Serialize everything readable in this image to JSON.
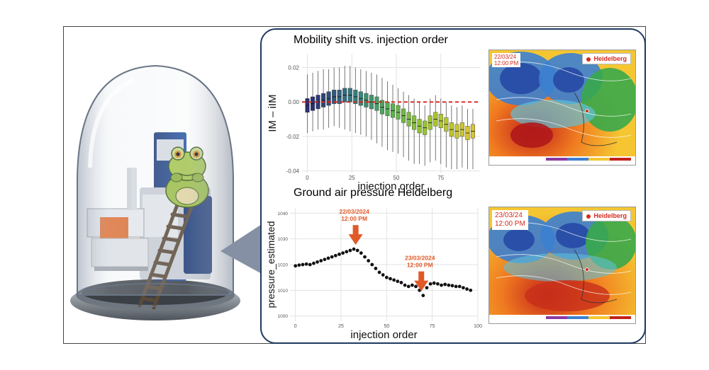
{
  "chart_data": [
    {
      "type": "box",
      "title": "Mobility shift vs. injection order",
      "xlabel": "injection order",
      "ylabel": "IM – iIM",
      "x_ticks": [
        "0",
        "25",
        "50",
        "75"
      ],
      "y_ticks": [
        "0.02",
        "0.00",
        "-0.02",
        "-0.04"
      ],
      "xlim": [
        -3,
        97
      ],
      "ylim": [
        -0.041,
        0.028
      ],
      "reference_line": {
        "y": 0.0,
        "style": "dashed",
        "color": "#e0201a"
      },
      "grid": true,
      "x": [
        0,
        3,
        6,
        9,
        12,
        15,
        18,
        21,
        24,
        27,
        30,
        33,
        36,
        39,
        42,
        45,
        48,
        51,
        54,
        57,
        60,
        63,
        66,
        69,
        72,
        75,
        78,
        81,
        84,
        87,
        90,
        93
      ],
      "median": [
        -0.002,
        -0.001,
        0.0,
        0.001,
        0.002,
        0.003,
        0.003,
        0.004,
        0.004,
        0.003,
        0.002,
        0.001,
        0.0,
        -0.001,
        -0.003,
        -0.004,
        -0.005,
        -0.006,
        -0.008,
        -0.01,
        -0.012,
        -0.014,
        -0.015,
        -0.012,
        -0.01,
        -0.011,
        -0.013,
        -0.016,
        -0.017,
        -0.016,
        -0.018,
        -0.017
      ],
      "q1": [
        -0.006,
        -0.005,
        -0.004,
        -0.003,
        -0.002,
        -0.001,
        -0.001,
        0.0,
        0.0,
        -0.001,
        -0.002,
        -0.003,
        -0.004,
        -0.005,
        -0.007,
        -0.008,
        -0.009,
        -0.01,
        -0.012,
        -0.014,
        -0.016,
        -0.018,
        -0.019,
        -0.016,
        -0.014,
        -0.015,
        -0.017,
        -0.02,
        -0.021,
        -0.02,
        -0.022,
        -0.021
      ],
      "q3": [
        0.002,
        0.003,
        0.004,
        0.005,
        0.006,
        0.007,
        0.007,
        0.008,
        0.008,
        0.007,
        0.006,
        0.005,
        0.004,
        0.003,
        0.001,
        0.0,
        -0.001,
        -0.002,
        -0.004,
        -0.006,
        -0.008,
        -0.01,
        -0.011,
        -0.008,
        -0.006,
        -0.007,
        -0.009,
        -0.012,
        -0.013,
        -0.012,
        -0.014,
        -0.013
      ],
      "whisker_low": [
        -0.018,
        -0.017,
        -0.016,
        -0.016,
        -0.015,
        -0.014,
        -0.015,
        -0.016,
        -0.017,
        -0.018,
        -0.019,
        -0.02,
        -0.022,
        -0.024,
        -0.026,
        -0.028,
        -0.029,
        -0.03,
        -0.032,
        -0.034,
        -0.036,
        -0.036,
        -0.037,
        -0.035,
        -0.034,
        -0.036,
        -0.038,
        -0.039,
        -0.039,
        -0.038,
        -0.039,
        -0.039
      ],
      "whisker_high": [
        0.016,
        0.017,
        0.018,
        0.019,
        0.019,
        0.02,
        0.02,
        0.021,
        0.021,
        0.02,
        0.019,
        0.018,
        0.017,
        0.016,
        0.014,
        0.012,
        0.01,
        0.008,
        0.006,
        0.004,
        0.002,
        0.0,
        -0.002,
        0.002,
        0.004,
        0.002,
        0.0,
        -0.002,
        -0.003,
        -0.002,
        -0.004,
        -0.004
      ],
      "box_colors": [
        "#2b2f6e",
        "#2b2f6e",
        "#2d3a75",
        "#2e4478",
        "#2f4e7b",
        "#30587e",
        "#316280",
        "#326b80",
        "#33757f",
        "#357e7c",
        "#388678",
        "#3c8e72",
        "#41966c",
        "#479d65",
        "#4ea45e",
        "#56aa56",
        "#5fb04f",
        "#68b548",
        "#72b942",
        "#7cbd3c",
        "#86c037",
        "#8fc233",
        "#98c430",
        "#a0c52e",
        "#a8c62d",
        "#b0c72c",
        "#b8c72c",
        "#bfc72d",
        "#c6c62f",
        "#ccc531",
        "#d2c434",
        "#d7c237"
      ]
    },
    {
      "type": "scatter",
      "title": "Ground air pressure Heidelberg",
      "xlabel": "injection order",
      "ylabel": "pressure_estimated",
      "x_ticks": [
        "0",
        "25",
        "50",
        "75",
        "100"
      ],
      "y_ticks": [
        "1040",
        "1030",
        "1020",
        "1010",
        "1000"
      ],
      "xlim": [
        -3,
        100
      ],
      "ylim": [
        998,
        1042
      ],
      "grid": true,
      "x": [
        0,
        2,
        4,
        6,
        8,
        10,
        12,
        14,
        16,
        18,
        20,
        22,
        24,
        26,
        28,
        30,
        32,
        34,
        36,
        38,
        40,
        42,
        44,
        46,
        48,
        50,
        52,
        54,
        56,
        58,
        60,
        62,
        64,
        66,
        68,
        70,
        72,
        74,
        76,
        78,
        80,
        82,
        84,
        86,
        88,
        90,
        92,
        94,
        96
      ],
      "y": [
        1019.5,
        1019.8,
        1020.0,
        1020.2,
        1020.0,
        1020.5,
        1021.0,
        1021.5,
        1022.0,
        1022.5,
        1023.0,
        1023.5,
        1024.0,
        1024.5,
        1025.0,
        1025.5,
        1026.0,
        1025.5,
        1024.5,
        1023.0,
        1021.5,
        1020.0,
        1018.5,
        1017.0,
        1016.0,
        1015.0,
        1014.5,
        1014.0,
        1013.5,
        1013.0,
        1012.0,
        1011.5,
        1012.0,
        1011.5,
        1010.0,
        1008.0,
        1011.0,
        1012.5,
        1012.8,
        1012.5,
        1012.0,
        1012.3,
        1012.0,
        1011.8,
        1011.5,
        1011.5,
        1011.0,
        1010.5,
        1010.0
      ],
      "annotations": [
        {
          "text_line1": "22/03/2024",
          "text_line2": "12:00 PM",
          "x": 33,
          "y": 1026
        },
        {
          "text_line1": "23/03/2024",
          "text_line2": "12:00 PM",
          "x": 69,
          "y": 1008
        }
      ],
      "annotation_color": "#e05a28"
    }
  ],
  "maps": {
    "top": {
      "date": "22/03/24",
      "time": "12:00 PM",
      "legend_label": "Heidelberg"
    },
    "bottom": {
      "date": "23/03/24",
      "time": "12:00 PM",
      "legend_label": "Heidelberg"
    }
  },
  "colors": {
    "panel_border": "#1f3a5f",
    "annotation": "#e05a28",
    "ref_line": "#e0201a",
    "legend_red": "#d62a1e"
  },
  "icons": {
    "bell_jar": "glass-bell-jar-icon",
    "frog": "frog-illustration-icon",
    "ladder": "rope-ladder-icon",
    "instrument": "mass-spectrometer-icon"
  }
}
